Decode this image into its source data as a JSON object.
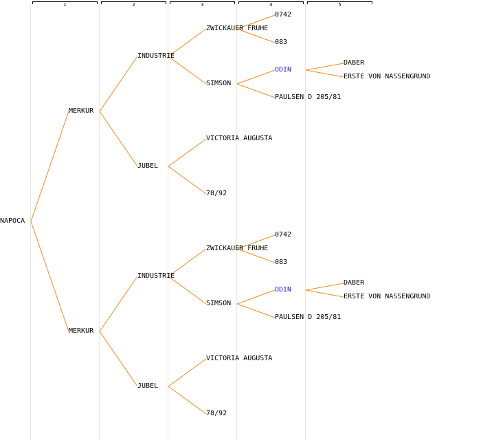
{
  "generations": [
    "1",
    "2",
    "3",
    "4",
    "5"
  ],
  "colors": {
    "line": "#f08a1e",
    "highlight": "#1f1fd0",
    "text": "#000000",
    "column": "#e6e6e6"
  },
  "tree": {
    "name": "NAPOCA",
    "children": [
      {
        "name": "MERKUR",
        "children": [
          {
            "name": "INDUSTRIE",
            "children": [
              {
                "name": "ZWICKAUER FRUHE",
                "children": [
                  {
                    "name": "0742"
                  },
                  {
                    "name": "083"
                  }
                ]
              },
              {
                "name": "SIMSON",
                "children": [
                  {
                    "name": "ODIN",
                    "highlight": true,
                    "children": [
                      {
                        "name": "DABER"
                      },
                      {
                        "name": "ERSTE VON NASSENGRUND"
                      }
                    ]
                  },
                  {
                    "name": "PAULSEN D 205/81"
                  }
                ]
              }
            ]
          },
          {
            "name": "JUBEL",
            "children": [
              {
                "name": "VICTORIA AUGUSTA"
              },
              {
                "name": "78/92"
              }
            ]
          }
        ]
      },
      {
        "name": "MERKUR",
        "children": [
          {
            "name": "INDUSTRIE",
            "children": [
              {
                "name": "ZWICKAUER FRUHE",
                "children": [
                  {
                    "name": "0742"
                  },
                  {
                    "name": "083"
                  }
                ]
              },
              {
                "name": "SIMSON",
                "children": [
                  {
                    "name": "ODIN",
                    "highlight": true,
                    "children": [
                      {
                        "name": "DABER"
                      },
                      {
                        "name": "ERSTE VON NASSENGRUND"
                      }
                    ]
                  },
                  {
                    "name": "PAULSEN D 205/81"
                  }
                ]
              }
            ]
          },
          {
            "name": "JUBEL",
            "children": [
              {
                "name": "VICTORIA AUGUSTA"
              },
              {
                "name": "78/92"
              }
            ]
          }
        ]
      }
    ]
  }
}
